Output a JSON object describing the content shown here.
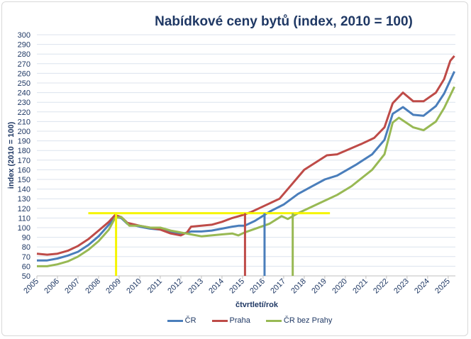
{
  "chart_data": {
    "type": "line",
    "title": "Nabídkové ceny bytů (index, 2010 = 100)",
    "xlabel": "čtvrtletí/rok",
    "ylabel": "index (2010 = 100)",
    "xlim": [
      2005,
      2025.35
    ],
    "ylim": [
      50,
      300
    ],
    "yticks": [
      50,
      60,
      70,
      80,
      90,
      100,
      110,
      120,
      130,
      140,
      150,
      160,
      170,
      180,
      190,
      200,
      210,
      220,
      230,
      240,
      250,
      260,
      270,
      280,
      290,
      300
    ],
    "xticks": [
      "2005",
      "2006",
      "2007",
      "2008",
      "2009",
      "2010",
      "2011",
      "2012",
      "2013",
      "2014",
      "2015",
      "2016",
      "2017",
      "2018",
      "2019",
      "2020",
      "2021",
      "2022",
      "2023",
      "2024",
      "2025"
    ],
    "grid": true,
    "legend": "bottom",
    "series": [
      {
        "name": "ČR",
        "color": "#4a7ebb",
        "x": [
          2005,
          2005.5,
          2006,
          2006.5,
          2007,
          2007.5,
          2008,
          2008.5,
          2008.8,
          2009.1,
          2009.4,
          2010,
          2010.5,
          2011,
          2011.5,
          2012,
          2012.3,
          2012.5,
          2013,
          2013.5,
          2014,
          2014.5,
          2014.8,
          2015.1,
          2015.6,
          2016.35,
          2017,
          2017.7,
          2018.3,
          2019,
          2019.6,
          2020.5,
          2021.3,
          2021.9,
          2022.3,
          2022.8,
          2023.3,
          2023.8,
          2024.4,
          2024.8,
          2025.3
        ],
        "y": [
          66,
          66,
          68,
          71,
          75,
          82,
          91,
          103,
          111,
          110,
          104,
          101,
          99,
          98,
          96,
          93,
          95,
          96,
          96,
          97,
          99,
          101,
          102,
          102,
          107,
          117,
          124,
          135,
          142,
          150,
          154,
          165,
          176,
          191,
          218,
          225,
          217,
          216,
          226,
          239,
          262
        ]
      },
      {
        "name": "Praha",
        "color": "#be4b48",
        "x": [
          2005,
          2005.5,
          2006,
          2006.5,
          2007,
          2007.5,
          2008,
          2008.5,
          2008.8,
          2009.1,
          2009.4,
          2010,
          2010.5,
          2011,
          2011.5,
          2012,
          2012.3,
          2012.5,
          2013,
          2013.5,
          2014,
          2014.5,
          2015,
          2015.4,
          2016.8,
          2017.4,
          2018,
          2019.1,
          2019.6,
          2020.8,
          2021.4,
          2021.9,
          2022.3,
          2022.8,
          2023.3,
          2023.8,
          2024.4,
          2024.8,
          2025.1,
          2025.3
        ],
        "y": [
          73,
          72,
          73,
          76,
          81,
          88,
          97,
          106,
          113,
          111,
          105,
          102,
          100,
          98,
          94,
          92,
          95,
          101,
          102,
          103,
          106,
          110,
          113,
          116,
          130,
          145,
          160,
          175,
          176,
          187,
          193,
          204,
          229,
          240,
          231,
          231,
          240,
          254,
          273,
          278
        ]
      },
      {
        "name": "ČR bez Prahy",
        "color": "#98b954",
        "x": [
          2005,
          2005.5,
          2006,
          2006.5,
          2007,
          2007.5,
          2008,
          2008.5,
          2008.8,
          2009.1,
          2009.5,
          2010,
          2010.5,
          2011,
          2011.5,
          2012,
          2012.5,
          2013,
          2013.5,
          2014,
          2014.5,
          2014.8,
          2015.1,
          2016.3,
          2016.9,
          2017.2,
          2017.7,
          2018.7,
          2019.6,
          2020.3,
          2021.3,
          2021.9,
          2022.3,
          2022.6,
          2023.3,
          2023.8,
          2024.4,
          2024.8,
          2025.3
        ],
        "y": [
          60,
          60,
          62,
          65,
          70,
          77,
          86,
          98,
          110,
          111,
          102,
          102,
          100,
          100,
          97,
          95,
          93,
          91,
          92,
          93,
          94,
          92,
          95,
          104,
          112,
          109,
          115,
          125,
          134,
          143,
          160,
          176,
          209,
          214,
          204,
          201,
          210,
          224,
          246
        ]
      }
    ],
    "reference_lines": [
      {
        "type": "horizontal",
        "y": 115,
        "x_from": 2007.5,
        "x_to": 2019.25,
        "color": "#f5f500"
      },
      {
        "type": "vertical",
        "x": 2008.85,
        "y_from": 50,
        "y_to": 115,
        "color": "#f5f500"
      },
      {
        "type": "vertical",
        "x": 2015.12,
        "y_from": 50,
        "y_to": 115,
        "color": "#be4b48"
      },
      {
        "type": "vertical",
        "x": 2016.07,
        "y_from": 50,
        "y_to": 115,
        "color": "#4a7ebb"
      },
      {
        "type": "vertical",
        "x": 2017.44,
        "y_from": 50,
        "y_to": 115,
        "color": "#98b954"
      }
    ]
  }
}
